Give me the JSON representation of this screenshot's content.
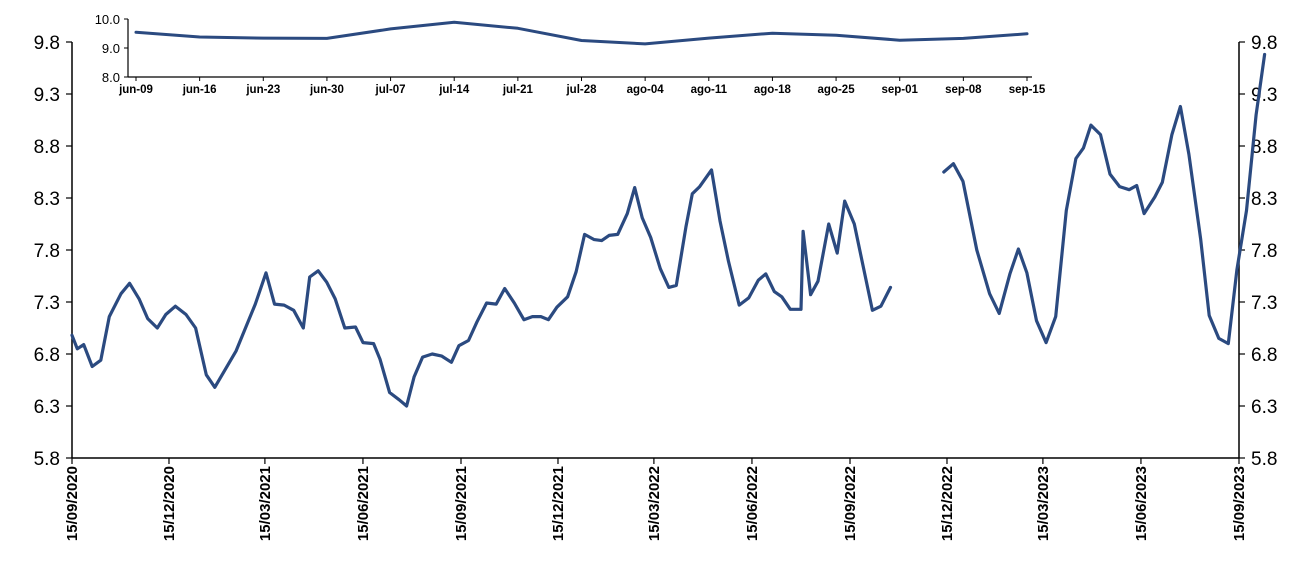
{
  "chart_data": [
    {
      "type": "line",
      "title": "",
      "xlabel": "",
      "ylabel": "",
      "ylim": [
        5.8,
        9.8
      ],
      "yticks": [
        "5.8",
        "6.3",
        "6.8",
        "7.3",
        "7.8",
        "8.3",
        "8.8",
        "9.3",
        "9.8"
      ],
      "x_range": [
        "2020-09-15",
        "2023-09-15"
      ],
      "xticks": [
        "15/09/2020",
        "15/12/2020",
        "15/03/2021",
        "15/06/2021",
        "15/09/2021",
        "15/12/2021",
        "15/03/2022",
        "15/06/2022",
        "15/09/2022",
        "15/12/2022",
        "15/03/2023",
        "15/06/2023",
        "15/09/2023"
      ],
      "grid": false,
      "legend": "none",
      "color": "#2b4a80",
      "series": [
        {
          "segments": [
            [
              {
                "x": "2020-09-15",
                "y": 6.98
              },
              {
                "x": "2020-09-20",
                "y": 6.85
              },
              {
                "x": "2020-09-26",
                "y": 6.89
              },
              {
                "x": "2020-10-04",
                "y": 6.68
              },
              {
                "x": "2020-10-12",
                "y": 6.74
              },
              {
                "x": "2020-10-20",
                "y": 7.16
              },
              {
                "x": "2020-10-31",
                "y": 7.38
              },
              {
                "x": "2020-11-08",
                "y": 7.48
              },
              {
                "x": "2020-11-17",
                "y": 7.33
              },
              {
                "x": "2020-11-25",
                "y": 7.14
              },
              {
                "x": "2020-12-04",
                "y": 7.05
              },
              {
                "x": "2020-12-12",
                "y": 7.18
              },
              {
                "x": "2020-12-21",
                "y": 7.26
              },
              {
                "x": "2020-12-31",
                "y": 7.18
              },
              {
                "x": "2021-01-09",
                "y": 7.05
              },
              {
                "x": "2021-01-19",
                "y": 6.6
              },
              {
                "x": "2021-01-27",
                "y": 6.48
              },
              {
                "x": "2021-02-16",
                "y": 6.83
              },
              {
                "x": "2021-03-06",
                "y": 7.28
              },
              {
                "x": "2021-03-16",
                "y": 7.58
              },
              {
                "x": "2021-03-24",
                "y": 7.28
              },
              {
                "x": "2021-04-02",
                "y": 7.27
              },
              {
                "x": "2021-04-11",
                "y": 7.22
              },
              {
                "x": "2021-04-20",
                "y": 7.05
              },
              {
                "x": "2021-04-26",
                "y": 7.54
              },
              {
                "x": "2021-05-04",
                "y": 7.6
              },
              {
                "x": "2021-05-12",
                "y": 7.49
              },
              {
                "x": "2021-05-20",
                "y": 7.33
              },
              {
                "x": "2021-05-29",
                "y": 7.05
              },
              {
                "x": "2021-06-08",
                "y": 7.06
              },
              {
                "x": "2021-06-15",
                "y": 6.91
              },
              {
                "x": "2021-06-25",
                "y": 6.9
              },
              {
                "x": "2021-07-01",
                "y": 6.75
              },
              {
                "x": "2021-07-10",
                "y": 6.43
              },
              {
                "x": "2021-07-19",
                "y": 6.36
              },
              {
                "x": "2021-07-26",
                "y": 6.3
              },
              {
                "x": "2021-08-02",
                "y": 6.58
              },
              {
                "x": "2021-08-10",
                "y": 6.77
              },
              {
                "x": "2021-08-19",
                "y": 6.8
              },
              {
                "x": "2021-08-28",
                "y": 6.78
              },
              {
                "x": "2021-09-06",
                "y": 6.72
              },
              {
                "x": "2021-09-13",
                "y": 6.88
              },
              {
                "x": "2021-09-22",
                "y": 6.93
              },
              {
                "x": "2021-09-30",
                "y": 7.11
              },
              {
                "x": "2021-10-09",
                "y": 7.29
              },
              {
                "x": "2021-10-18",
                "y": 7.28
              },
              {
                "x": "2021-10-26",
                "y": 7.43
              },
              {
                "x": "2021-11-04",
                "y": 7.29
              },
              {
                "x": "2021-11-13",
                "y": 7.13
              },
              {
                "x": "2021-11-21",
                "y": 7.16
              },
              {
                "x": "2021-11-29",
                "y": 7.16
              },
              {
                "x": "2021-12-06",
                "y": 7.13
              },
              {
                "x": "2021-12-14",
                "y": 7.25
              },
              {
                "x": "2021-12-24",
                "y": 7.35
              },
              {
                "x": "2022-01-01",
                "y": 7.59
              },
              {
                "x": "2022-01-09",
                "y": 7.95
              },
              {
                "x": "2022-01-18",
                "y": 7.9
              },
              {
                "x": "2022-01-25",
                "y": 7.89
              },
              {
                "x": "2022-02-01",
                "y": 7.94
              },
              {
                "x": "2022-02-09",
                "y": 7.95
              },
              {
                "x": "2022-02-18",
                "y": 8.15
              },
              {
                "x": "2022-02-25",
                "y": 8.4
              },
              {
                "x": "2022-03-04",
                "y": 8.11
              },
              {
                "x": "2022-03-12",
                "y": 7.92
              },
              {
                "x": "2022-03-21",
                "y": 7.62
              },
              {
                "x": "2022-03-29",
                "y": 7.44
              },
              {
                "x": "2022-04-05",
                "y": 7.46
              },
              {
                "x": "2022-04-14",
                "y": 8.02
              },
              {
                "x": "2022-04-20",
                "y": 8.34
              },
              {
                "x": "2022-04-27",
                "y": 8.41
              },
              {
                "x": "2022-05-08",
                "y": 8.57
              },
              {
                "x": "2022-05-16",
                "y": 8.08
              },
              {
                "x": "2022-05-24",
                "y": 7.69
              },
              {
                "x": "2022-06-03",
                "y": 7.27
              },
              {
                "x": "2022-06-12",
                "y": 7.34
              },
              {
                "x": "2022-06-21",
                "y": 7.51
              },
              {
                "x": "2022-06-28",
                "y": 7.57
              },
              {
                "x": "2022-07-06",
                "y": 7.4
              },
              {
                "x": "2022-07-13",
                "y": 7.35
              },
              {
                "x": "2022-07-21",
                "y": 7.23
              },
              {
                "x": "2022-07-31",
                "y": 7.23
              },
              {
                "x": "2022-08-02",
                "y": 7.98
              },
              {
                "x": "2022-08-09",
                "y": 7.37
              },
              {
                "x": "2022-08-16",
                "y": 7.5
              },
              {
                "x": "2022-08-26",
                "y": 8.05
              },
              {
                "x": "2022-09-03",
                "y": 7.77
              },
              {
                "x": "2022-09-10",
                "y": 8.27
              },
              {
                "x": "2022-09-19",
                "y": 8.05
              },
              {
                "x": "2022-09-27",
                "y": 7.66
              },
              {
                "x": "2022-10-06",
                "y": 7.22
              },
              {
                "x": "2022-10-14",
                "y": 7.26
              },
              {
                "x": "2022-10-23",
                "y": 7.44
              }
            ],
            [
              {
                "x": "2022-12-12",
                "y": 8.55
              },
              {
                "x": "2022-12-21",
                "y": 8.63
              },
              {
                "x": "2022-12-30",
                "y": 8.46
              },
              {
                "x": "2023-01-12",
                "y": 7.8
              },
              {
                "x": "2023-01-24",
                "y": 7.38
              },
              {
                "x": "2023-02-02",
                "y": 7.19
              },
              {
                "x": "2023-02-12",
                "y": 7.57
              },
              {
                "x": "2023-02-20",
                "y": 7.81
              },
              {
                "x": "2023-02-28",
                "y": 7.58
              },
              {
                "x": "2023-03-09",
                "y": 7.12
              },
              {
                "x": "2023-03-18",
                "y": 6.91
              },
              {
                "x": "2023-03-27",
                "y": 7.16
              },
              {
                "x": "2023-04-06",
                "y": 8.18
              },
              {
                "x": "2023-04-15",
                "y": 8.68
              },
              {
                "x": "2023-04-22",
                "y": 8.78
              },
              {
                "x": "2023-04-29",
                "y": 9.0
              },
              {
                "x": "2023-05-08",
                "y": 8.91
              },
              {
                "x": "2023-05-17",
                "y": 8.53
              },
              {
                "x": "2023-05-26",
                "y": 8.41
              },
              {
                "x": "2023-06-04",
                "y": 8.38
              },
              {
                "x": "2023-06-11",
                "y": 8.42
              },
              {
                "x": "2023-06-18",
                "y": 8.15
              },
              {
                "x": "2023-06-28",
                "y": 8.31
              },
              {
                "x": "2023-07-05",
                "y": 8.45
              },
              {
                "x": "2023-07-14",
                "y": 8.91
              },
              {
                "x": "2023-07-22",
                "y": 9.18
              },
              {
                "x": "2023-07-30",
                "y": 8.72
              },
              {
                "x": "2023-08-10",
                "y": 7.91
              },
              {
                "x": "2023-08-18",
                "y": 7.17
              },
              {
                "x": "2023-08-27",
                "y": 6.95
              },
              {
                "x": "2023-09-05",
                "y": 6.9
              },
              {
                "x": "2023-09-13",
                "y": 7.61
              },
              {
                "x": "2023-09-22",
                "y": 8.18
              },
              {
                "x": "2023-10-01",
                "y": 9.1
              },
              {
                "x": "2023-10-09",
                "y": 9.68
              }
            ]
          ]
        }
      ]
    },
    {
      "type": "line",
      "title": "",
      "xlabel": "",
      "ylabel": "",
      "ylim": [
        8.0,
        10.0
      ],
      "yticks": [
        "8.0",
        "9.0",
        "10.0"
      ],
      "categories": [
        "jun-09",
        "jun-16",
        "jun-23",
        "jun-30",
        "jul-07",
        "jul-14",
        "jul-21",
        "jul-28",
        "ago-04",
        "ago-11",
        "ago-18",
        "ago-25",
        "sep-01",
        "sep-08",
        "sep-15"
      ],
      "grid": false,
      "legend": "none",
      "color": "#2b4a80",
      "series": [
        {
          "values": [
            9.54,
            9.38,
            9.34,
            9.33,
            9.66,
            9.89,
            9.68,
            9.26,
            9.14,
            9.34,
            9.51,
            9.44,
            9.27,
            9.33,
            9.49
          ]
        }
      ]
    }
  ]
}
